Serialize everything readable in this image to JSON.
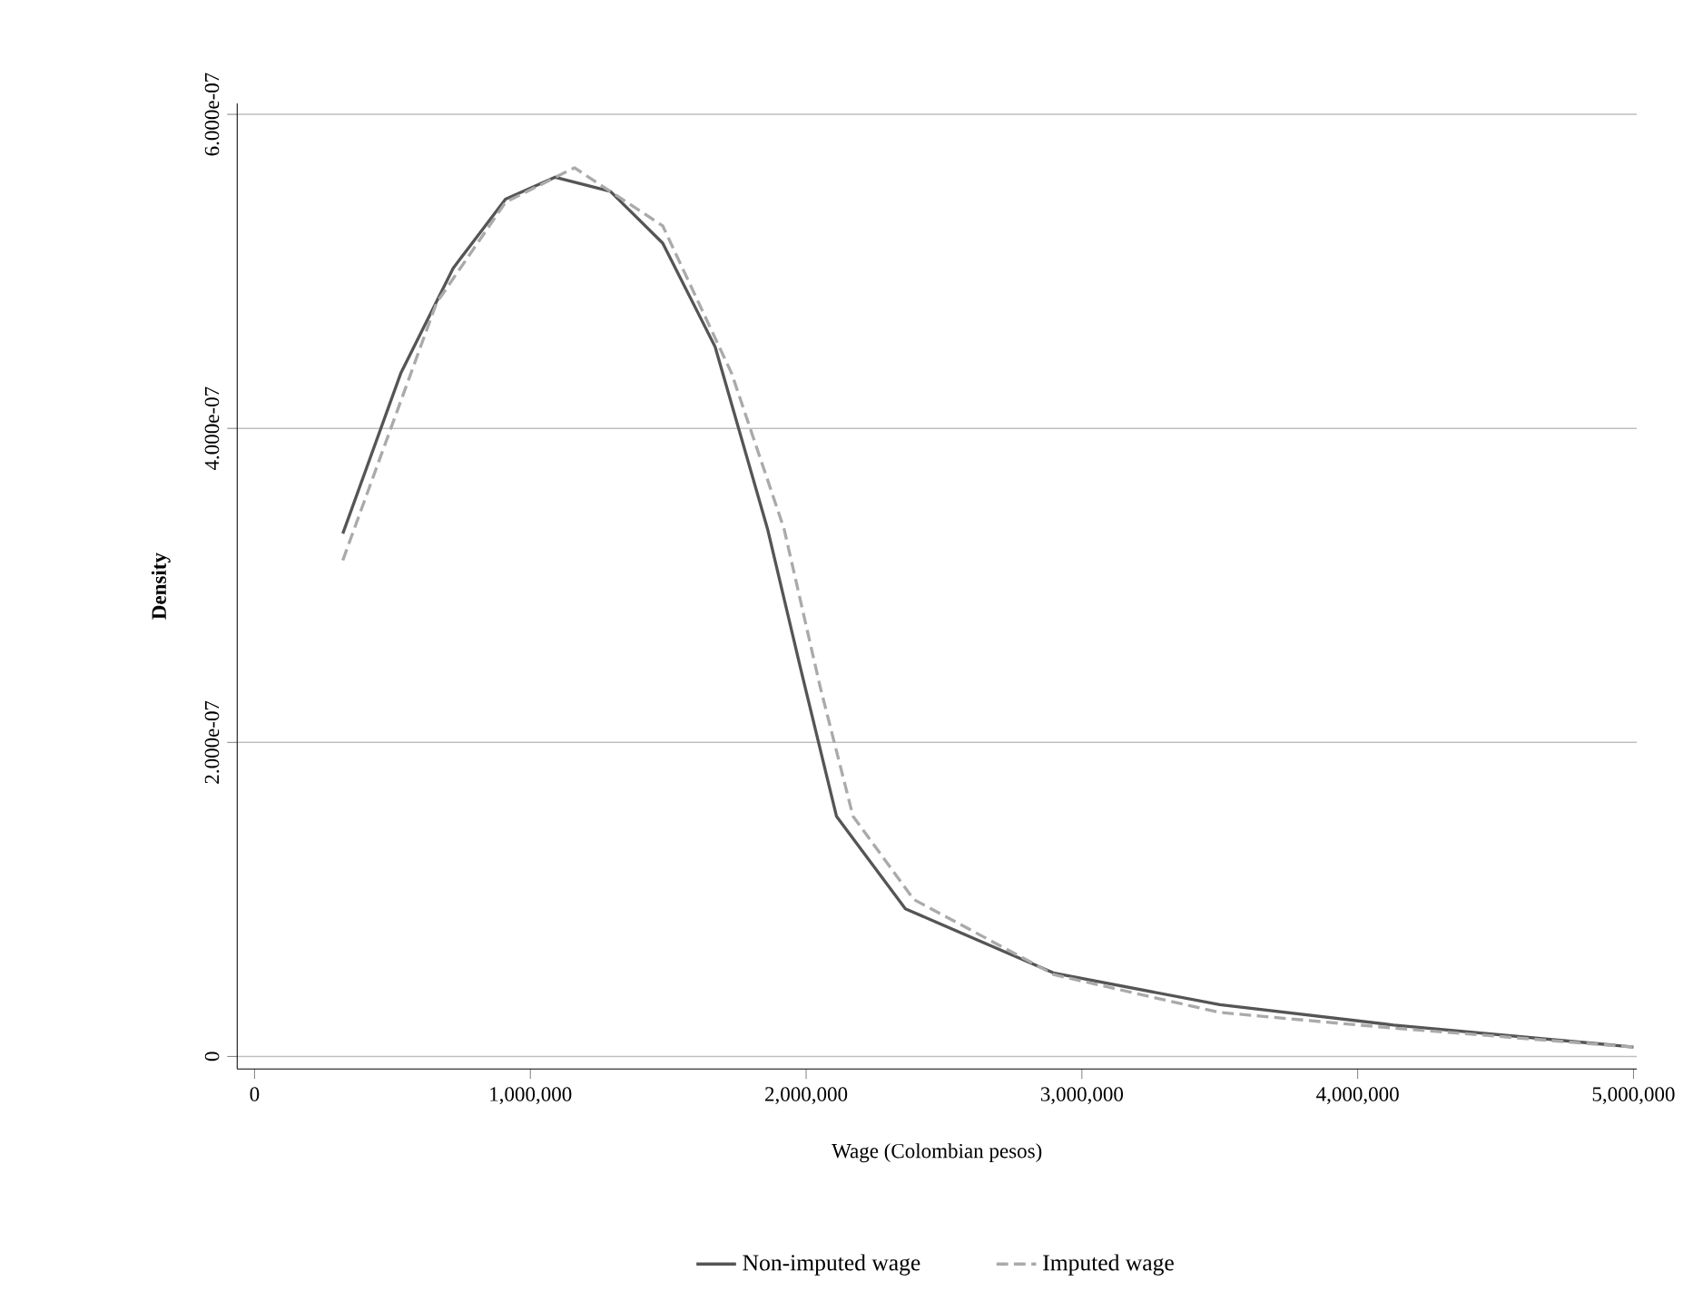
{
  "chart_data": {
    "type": "line",
    "xlabel": "Wage (Colombian pesos)",
    "ylabel": "Density",
    "x": [
      320000,
      530000,
      720000,
      910000,
      1090000,
      1290000,
      1480000,
      1670000,
      1860000,
      1980000,
      2110000,
      2360000,
      2900000,
      3500000,
      4130000,
      5000000
    ],
    "series": [
      {
        "name": "Non-imputed wage",
        "color": "#555555",
        "line_style": "solid",
        "values": [
          3.33e-07,
          4.35e-07,
          5.02e-07,
          5.46e-07,
          5.6e-07,
          5.51e-07,
          5.18e-07,
          4.52e-07,
          3.36e-07,
          2.47e-07,
          1.53e-07,
          9.4e-08,
          5.3e-08,
          3.3e-08,
          2e-08,
          6e-09
        ]
      },
      {
        "name": "Imputed wage",
        "color": "#aaaaaa",
        "line_style": "dashed",
        "x": [
          320000,
          660000,
          910000,
          1160000,
          1480000,
          1730000,
          1920000,
          2050000,
          2170000,
          2390000,
          2900000,
          3500000,
          4130000,
          5000000
        ],
        "values": [
          3.16e-07,
          4.8e-07,
          5.44e-07,
          5.66e-07,
          5.29e-07,
          4.35e-07,
          3.36e-07,
          2.36e-07,
          1.53e-07,
          1e-07,
          5.2e-08,
          2.8e-08,
          1.8e-08,
          6e-09
        ]
      }
    ],
    "xlim": [
      -63000,
      5012000
    ],
    "ylim": [
      -8e-09,
      6.07e-07
    ],
    "xticks": [
      0,
      {
        "value": 1000000,
        "label": "1,000,000"
      },
      {
        "value": 2000000,
        "label": "2,000,000"
      },
      {
        "value": 3000000,
        "label": "3,000,000"
      },
      {
        "value": 4000000,
        "label": "4,000,000"
      },
      {
        "value": 5000000,
        "label": "5,000,000"
      }
    ],
    "yticks": [
      0,
      {
        "value": 2e-07,
        "label": "2.000e-07"
      },
      {
        "value": 4e-07,
        "label": "4.000e-07"
      },
      {
        "value": 6e-07,
        "label": "6.000e-07"
      }
    ],
    "grid": "y",
    "legend": "bottom",
    "marker": "none"
  }
}
